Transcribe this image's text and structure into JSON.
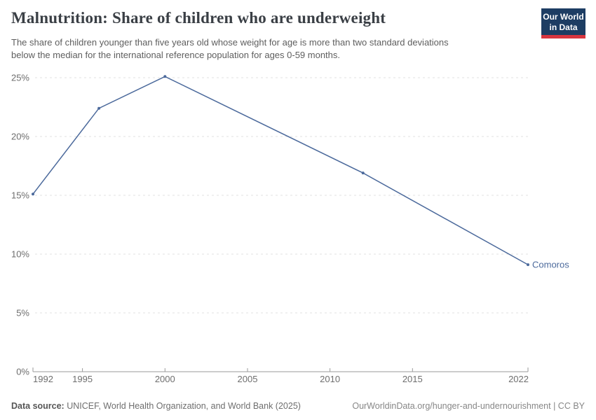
{
  "header": {
    "title": "Malnutrition: Share of children who are underweight",
    "subtitle_line1": "The share of children younger than five years old whose weight for age is more than two standard deviations",
    "subtitle_line2": "below the median for the international reference population for ages 0-59 months.",
    "logo": {
      "line1": "Our World",
      "line2": "in Data"
    }
  },
  "chart_data": {
    "type": "line",
    "title": "Malnutrition: Share of children who are underweight",
    "series": [
      {
        "name": "Comoros",
        "x": [
          1992,
          1996,
          2000,
          2012,
          2022
        ],
        "values": [
          15.1,
          22.4,
          25.1,
          16.9,
          9.1
        ],
        "color": "#4C6A9C"
      }
    ],
    "entity_label": "Comoros",
    "unit": "%",
    "xlim": [
      1992,
      2022
    ],
    "ylim": [
      0,
      25
    ],
    "grid": true,
    "legend_position": "end-of-line-label",
    "x_tick_labels": [
      "1992",
      "1995",
      "2000",
      "2005",
      "2010",
      "2015",
      "2022"
    ],
    "x_ticks": [
      1992,
      1995,
      2000,
      2005,
      2010,
      2015,
      2022
    ],
    "y_tick_labels": [
      "25%",
      "20%",
      "15%",
      "10%",
      "5%",
      "0%"
    ],
    "y_ticks": [
      25,
      20,
      15,
      10,
      5,
      0
    ]
  },
  "footer": {
    "source_label": "Data source:",
    "source_text": "UNICEF, World Health Organization, and World Bank (2025)",
    "link_text": "OurWorldinData.org/hunger-and-undernourishment | CC BY"
  },
  "colors": {
    "series": "#4C6A9C",
    "logo_bg": "#1d3d63",
    "logo_stripe": "#d8353f"
  }
}
